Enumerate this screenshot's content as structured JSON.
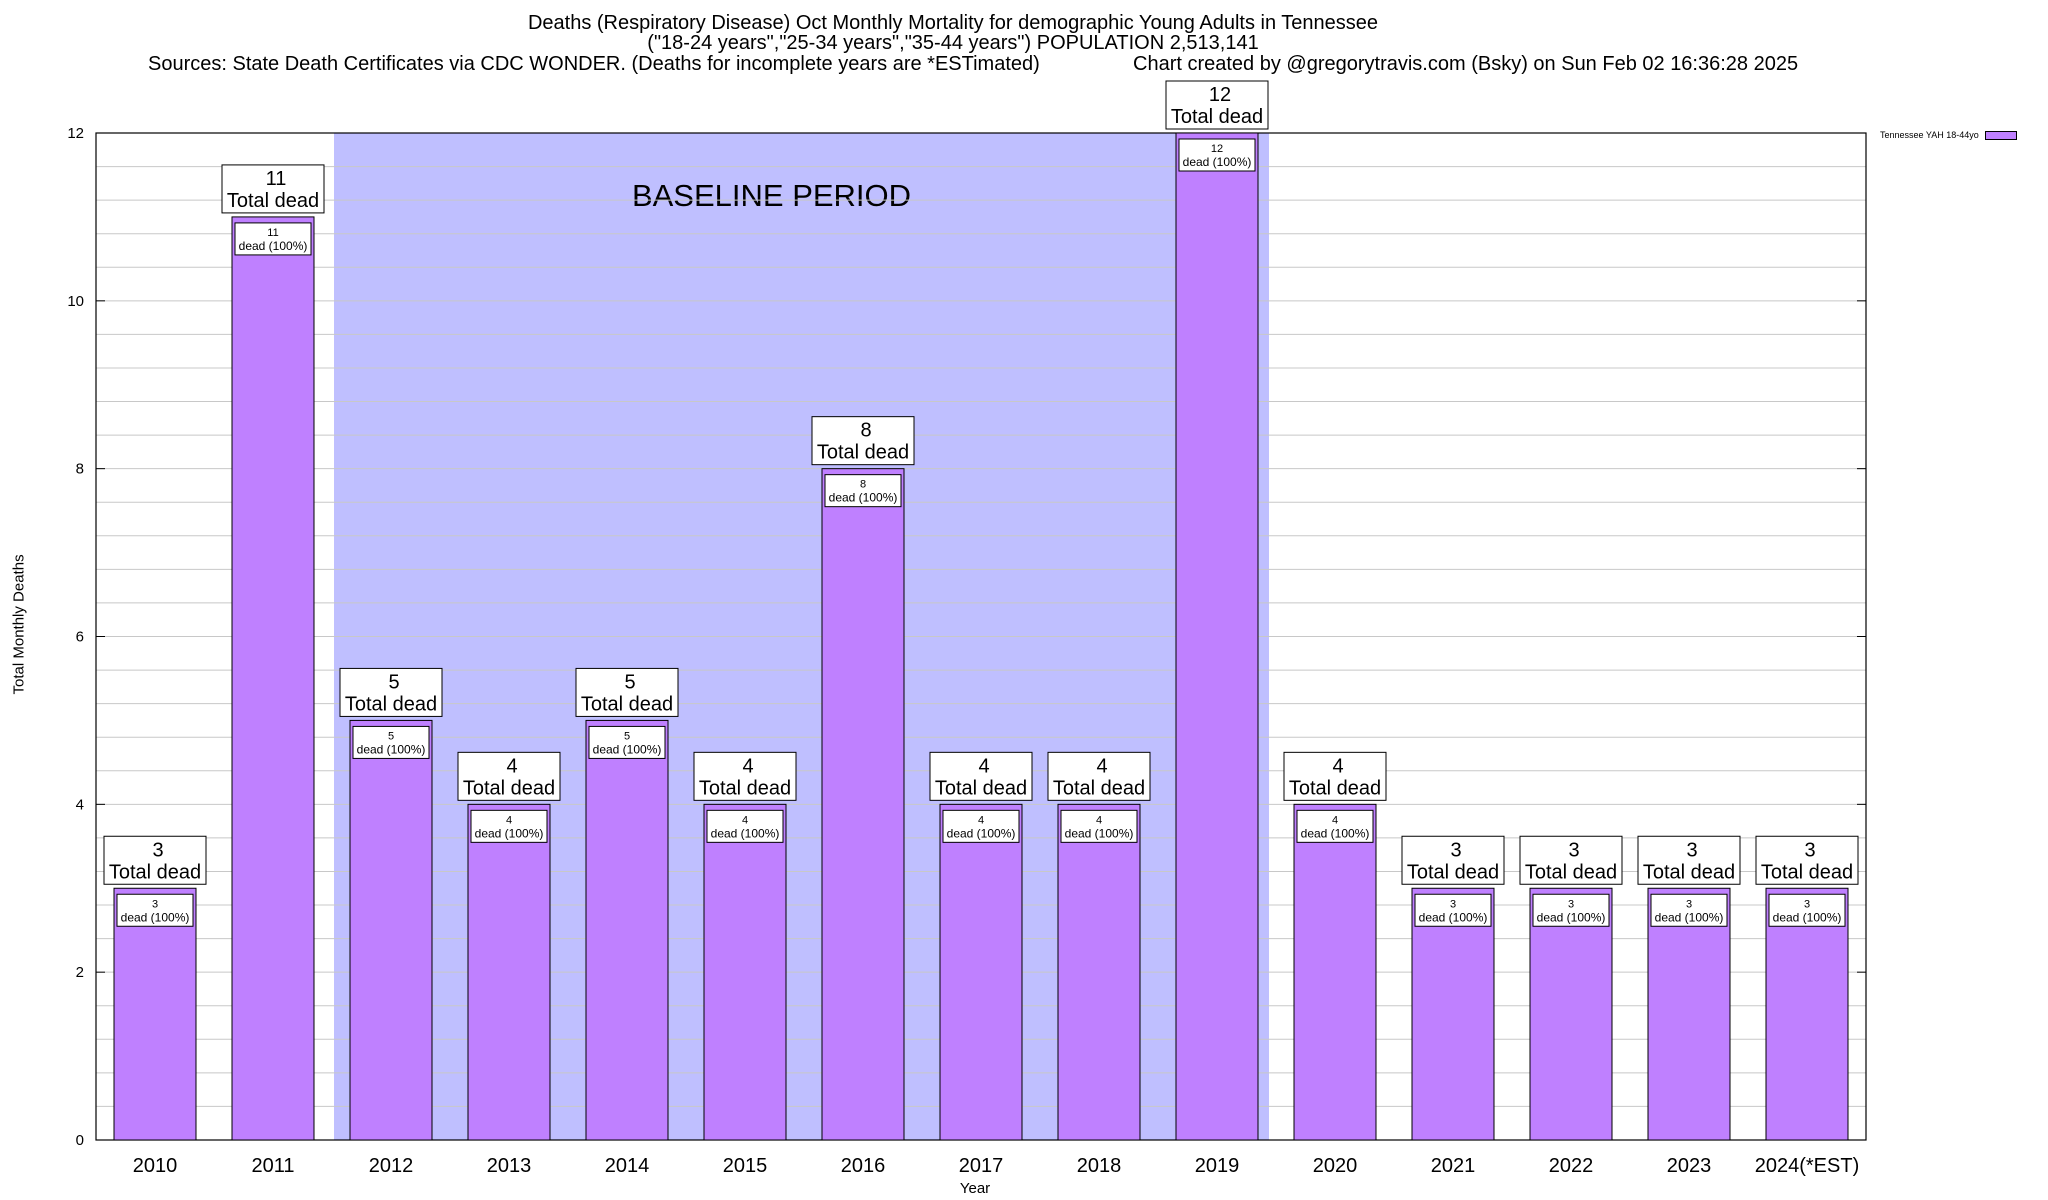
{
  "chart_data": {
    "type": "bar",
    "title": "Deaths (Respiratory Disease) Oct Monthly Mortality for demographic Young Adults in Tennessee",
    "subtitle": "(\"18-24 years\",\"25-34 years\",\"35-44 years\") POPULATION 2,513,141",
    "sources": "Sources: State Death Certificates via CDC WONDER. (Deaths for incomplete years are *ESTimated)",
    "credit": "Chart created by @gregorytravis.com (Bsky) on Sun Feb 02 16:36:28 2025",
    "xlabel": "Year",
    "ylabel": "Total Monthly Deaths",
    "ylim": [
      0,
      12
    ],
    "yticks": [
      0,
      2,
      4,
      6,
      8,
      10,
      12
    ],
    "categories": [
      "2010",
      "2011",
      "2012",
      "2013",
      "2014",
      "2015",
      "2016",
      "2017",
      "2018",
      "2019",
      "2020",
      "2021",
      "2022",
      "2023",
      "2024(*EST)"
    ],
    "series": [
      {
        "name": "Tennessee YAH 18-44yo",
        "values": [
          3,
          11,
          5,
          4,
          5,
          4,
          8,
          4,
          4,
          12,
          4,
          3,
          3,
          3,
          3
        ]
      }
    ],
    "total_label": "Total dead",
    "inner_label": "dead (100%)",
    "baseline": {
      "label": "BASELINE PERIOD",
      "from": "2012",
      "to": "2019"
    },
    "colors": {
      "bar": "#bf80ff",
      "baseline": "#bfbfff",
      "grid": "#c8c8c8"
    }
  }
}
